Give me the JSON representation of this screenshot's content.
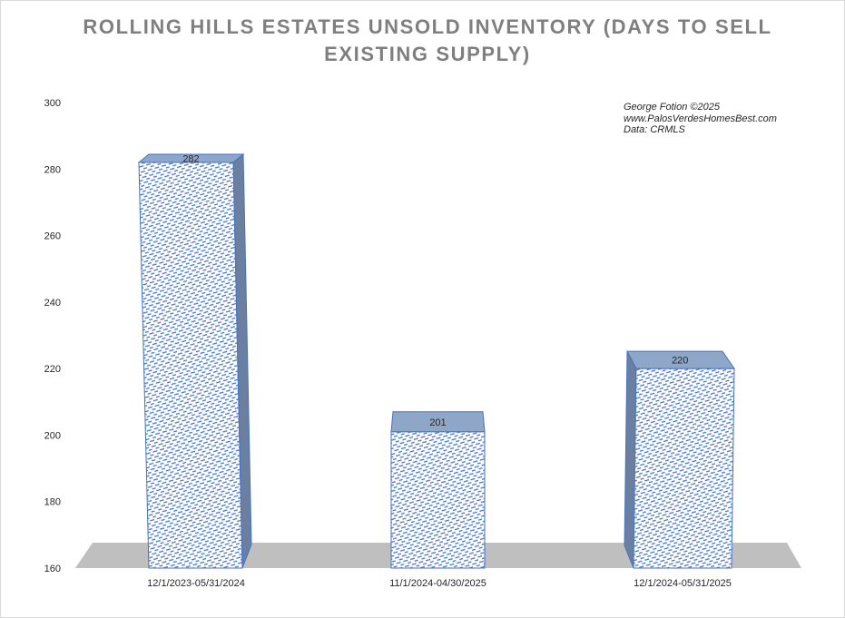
{
  "chart_data": {
    "type": "bar",
    "title": "ROLLING HILLS ESTATES UNSOLD INVENTORY (DAYS TO SELL EXISTING SUPPLY)",
    "categories": [
      "12/1/2023-05/31/2024",
      "11/1/2024-04/30/2025",
      "12/1/2024-05/31/2025"
    ],
    "values": [
      282,
      201,
      220
    ],
    "data_labels": [
      "282",
      "201",
      "220"
    ],
    "ylim": [
      160,
      300
    ],
    "yticks": [
      "160",
      "180",
      "200",
      "220",
      "240",
      "260",
      "280",
      "300"
    ],
    "style": "3d-columns",
    "pattern": "blue dashed diagonal fill",
    "grid": false,
    "legend": "none",
    "colors": {
      "bar_fill": "#ffffff",
      "bar_pattern": "#4472c4",
      "bar_edge": "#4472c4",
      "bar_top": "#8ea6c8",
      "bar_side": "#6b7fa0",
      "floor": "#bfbfbf",
      "title": "#7f7f7f"
    }
  },
  "credits": {
    "line1": "George Fotion ©2025",
    "line2": "www.PalosVerdesHomesBest.com",
    "line3": "Data: CRMLS"
  }
}
